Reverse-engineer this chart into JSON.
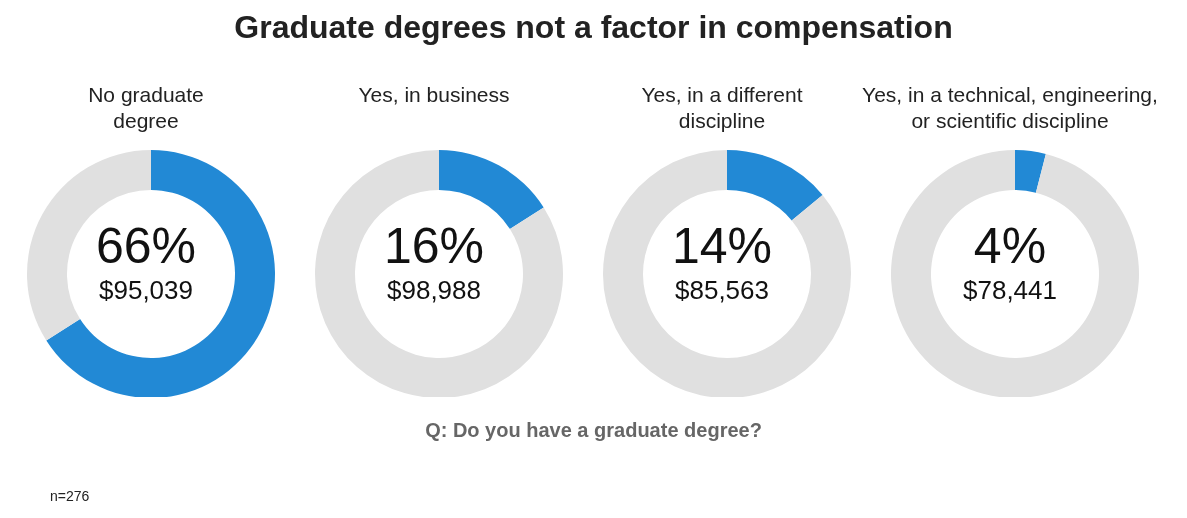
{
  "chart_data": [
    {
      "type": "other",
      "title": "Graduate degrees not a factor in compensation"
    },
    {
      "type": "donut",
      "title": "No graduate degree",
      "categories": [
        null,
        null
      ],
      "values": [
        66,
        34
      ],
      "colors": [
        "#2289d5",
        "#e0e0e0"
      ],
      "value_labels": [
        "66%",
        null
      ],
      "annotations": [
        "$95,039"
      ]
    },
    {
      "type": "donut",
      "title": "Yes, in business",
      "categories": [
        null,
        null
      ],
      "values": [
        16,
        84
      ],
      "colors": [
        "#2289d5",
        "#e0e0e0"
      ],
      "value_labels": [
        "16%",
        null
      ],
      "annotations": [
        "$98,988"
      ]
    },
    {
      "type": "donut",
      "title": "Yes, in a different discipline",
      "categories": [
        null,
        null
      ],
      "values": [
        14,
        86
      ],
      "colors": [
        "#2289d5",
        "#e0e0e0"
      ],
      "value_labels": [
        "14%",
        null
      ],
      "annotations": [
        "$85,563"
      ]
    },
    {
      "type": "donut",
      "title": "Yes, in a technical, engineering, or scientific discipline",
      "categories": [
        null,
        null
      ],
      "values": [
        4,
        96
      ],
      "colors": [
        "#2289d5",
        "#e0e0e0"
      ],
      "value_labels": [
        "4%",
        null
      ],
      "annotations": [
        "$78,441"
      ]
    },
    {
      "type": "other",
      "annotations": [
        "Q: Do you have a graduate degree?",
        "n=276"
      ]
    }
  ]
}
